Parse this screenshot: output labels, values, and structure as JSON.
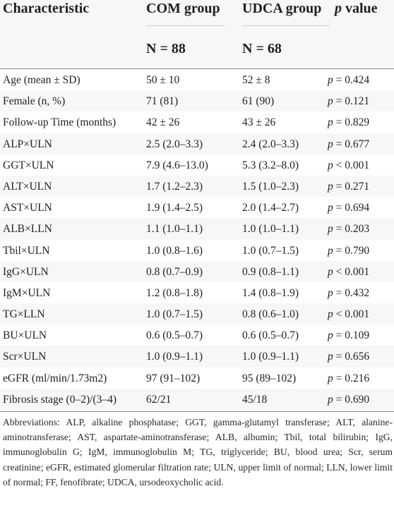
{
  "header": {
    "characteristic": "Characteristic",
    "com_group": "COM group",
    "udca_group": "UDCA group",
    "p_italic": "p",
    "p_rest": " value",
    "com_n": "N = 88",
    "udca_n": "N = 68"
  },
  "rows": [
    {
      "label": "Age (mean ± SD)",
      "com": "50 ± 10",
      "udca": "52 ± 8",
      "p_rest": " = 0.424"
    },
    {
      "label": "Female (n, %)",
      "com": "71 (81)",
      "udca": "61 (90)",
      "p_rest": " = 0.121"
    },
    {
      "label": "Follow-up Time (months)",
      "com": "42 ± 26",
      "udca": "43 ± 26",
      "p_rest": " = 0.829"
    },
    {
      "label": "ALP×ULN",
      "com": "2.5 (2.0–3.3)",
      "udca": "2.4 (2.0–3.3)",
      "p_rest": " = 0.677"
    },
    {
      "label": "GGT×ULN",
      "com": "7.9 (4.6–13.0)",
      "udca": "5.3 (3.2–8.0)",
      "p_rest": " < 0.001"
    },
    {
      "label": "ALT×ULN",
      "com": "1.7 (1.2–2.3)",
      "udca": "1.5 (1.0–2.3)",
      "p_rest": " = 0.271"
    },
    {
      "label": "AST×ULN",
      "com": "1.9 (1.4–2.5)",
      "udca": "2.0 (1.4–2.7)",
      "p_rest": " = 0.694"
    },
    {
      "label": "ALB×LLN",
      "com": "1.1 (1.0–1.1)",
      "udca": "1.0 (1.0–1.1)",
      "p_rest": " = 0.203"
    },
    {
      "label": "Tbil×ULN",
      "com": "1.0 (0.8–1.6)",
      "udca": "1.0 (0.7–1.5)",
      "p_rest": " = 0.790"
    },
    {
      "label": "IgG×ULN",
      "com": "0.8 (0.7–0.9)",
      "udca": "0.9 (0.8–1.1)",
      "p_rest": " < 0.001"
    },
    {
      "label": "IgM×ULN",
      "com": "1.2 (0.8–1.8)",
      "udca": "1.4 (0.8–1.9)",
      "p_rest": " = 0.432"
    },
    {
      "label": "TG×LLN",
      "com": "1.0 (0.7–1.5)",
      "udca": "0.8 (0.6–1.0)",
      "p_rest": " < 0.001"
    },
    {
      "label": "BU×ULN",
      "com": "0.6 (0.5–0.7)",
      "udca": "0.6 (0.5–0.7)",
      "p_rest": " = 0.109"
    },
    {
      "label": "Scr×ULN",
      "com": "1.0 (0.9–1.1)",
      "udca": "1.0 (0.9–1.1)",
      "p_rest": " = 0.656"
    },
    {
      "label": "eGFR (ml/min/1.73m2)",
      "com": "97 (91–102)",
      "udca": "95 (89–102)",
      "p_rest": " = 0.216"
    },
    {
      "label": "Fibrosis stage (0–2)/(3–4)",
      "com": "62/21",
      "udca": "45/18",
      "p_rest": " = 0.690"
    }
  ],
  "p_symbol": "p",
  "footnote": "Abbreviations: ALP, alkaline phosphatase; GGT, gamma-glutamyl transferase; ALT, alanine-aminotransferase; AST, aspartate-aminotransferase; ALB, albumin; Tbil, total bilirubin; IgG, immunoglobulin G; IgM, immunoglobulin M; TG, triglyceride; BU, blood urea; Scr, serum creatinine; eGFR, estimated glomerular filtration rate; ULN, upper limit of normal; LLN, lower limit of normal; FF, fenofibrate; UDCA, ursodeoxycholic acid.",
  "colors": {
    "header_band": "#f7f7f7",
    "shade_row": "#f7f7f7",
    "text": "#222222"
  }
}
